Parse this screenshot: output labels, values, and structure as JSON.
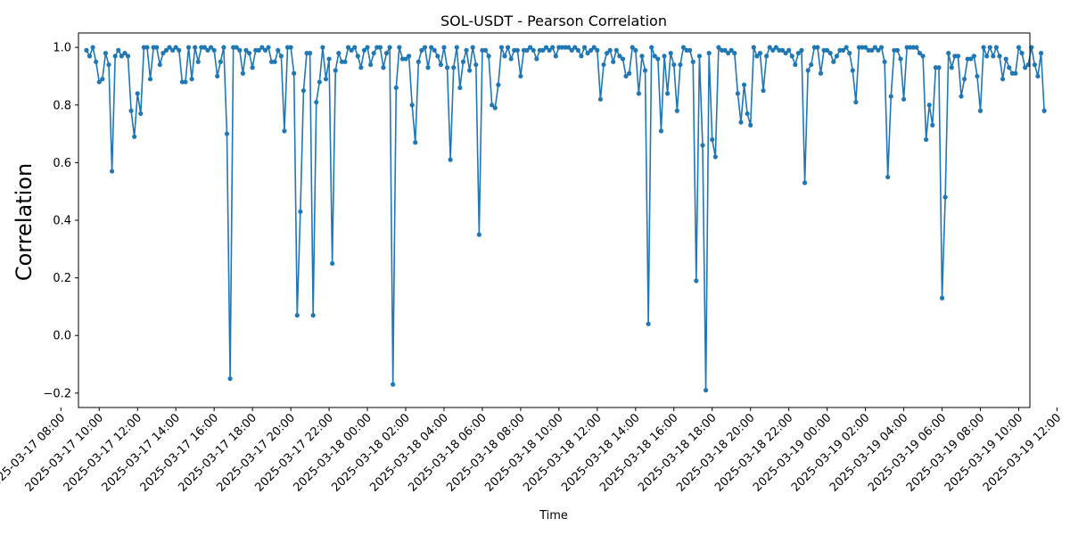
{
  "chart_data": {
    "type": "line",
    "title": "SOL-USDT - Pearson Correlation",
    "xlabel": "Time",
    "ylabel": "Correlation",
    "ylim": [
      -0.25,
      1.05
    ],
    "xlim": [
      "2025-03-17 08:55",
      "2025-03-19 10:35"
    ],
    "yticks": [
      -0.2,
      0.0,
      0.2,
      0.4,
      0.6,
      0.8,
      1.0
    ],
    "ytick_labels": [
      "−0.2",
      "0.0",
      "0.2",
      "0.4",
      "0.6",
      "0.8",
      "1.0"
    ],
    "xticks": [
      "2025-03-17 08:00",
      "2025-03-17 10:00",
      "2025-03-17 12:00",
      "2025-03-17 14:00",
      "2025-03-17 16:00",
      "2025-03-17 18:00",
      "2025-03-17 20:00",
      "2025-03-17 22:00",
      "2025-03-18 00:00",
      "2025-03-18 02:00",
      "2025-03-18 04:00",
      "2025-03-18 06:00",
      "2025-03-18 08:00",
      "2025-03-18 10:00",
      "2025-03-18 12:00",
      "2025-03-18 14:00",
      "2025-03-18 16:00",
      "2025-03-18 18:00",
      "2025-03-18 20:00",
      "2025-03-18 22:00",
      "2025-03-19 00:00",
      "2025-03-19 02:00",
      "2025-03-19 04:00",
      "2025-03-19 06:00",
      "2025-03-19 08:00",
      "2025-03-19 10:00",
      "2025-03-19 12:00"
    ],
    "grid": false,
    "marker": "circle",
    "color": "#1f77b4",
    "series": [
      {
        "start": "2025-03-17 09:20",
        "interval_minutes": 10,
        "values": [
          0.99,
          0.97,
          1.0,
          0.95,
          0.88,
          0.89,
          0.98,
          0.94,
          0.57,
          0.97,
          0.99,
          0.97,
          0.98,
          0.97,
          0.78,
          0.69,
          0.84,
          0.77,
          1.0,
          1.0,
          0.89,
          1.0,
          1.0,
          0.94,
          0.98,
          0.99,
          1.0,
          0.99,
          1.0,
          0.99,
          0.88,
          0.88,
          1.0,
          0.89,
          1.0,
          0.95,
          1.0,
          1.0,
          0.99,
          1.0,
          0.99,
          0.9,
          0.95,
          1.0,
          0.7,
          -0.15,
          1.0,
          1.0,
          0.99,
          0.91,
          0.99,
          0.98,
          0.93,
          0.99,
          0.99,
          1.0,
          0.99,
          1.0,
          0.95,
          0.95,
          0.99,
          0.97,
          0.71,
          1.0,
          1.0,
          0.91,
          0.07,
          0.43,
          0.85,
          0.98,
          0.98,
          0.07,
          0.81,
          0.88,
          1.0,
          0.89,
          0.96,
          0.25,
          0.92,
          0.98,
          0.95,
          0.95,
          1.0,
          0.99,
          1.0,
          0.97,
          0.93,
          0.99,
          1.0,
          0.94,
          0.98,
          1.0,
          1.0,
          0.93,
          0.98,
          1.0,
          -0.17,
          0.86,
          1.0,
          0.96,
          0.96,
          0.97,
          0.8,
          0.67,
          0.95,
          0.99,
          1.0,
          0.93,
          1.0,
          0.99,
          0.97,
          0.94,
          1.0,
          0.93,
          0.61,
          0.93,
          1.0,
          0.86,
          0.95,
          0.99,
          0.92,
          1.0,
          0.94,
          0.35,
          0.99,
          0.99,
          0.97,
          0.8,
          0.79,
          0.87,
          1.0,
          0.97,
          1.0,
          0.96,
          0.99,
          0.99,
          0.9,
          0.99,
          0.99,
          1.0,
          0.99,
          0.96,
          0.99,
          0.99,
          1.0,
          0.99,
          1.0,
          0.97,
          1.0,
          1.0,
          1.0,
          1.0,
          0.99,
          1.0,
          0.99,
          0.97,
          1.0,
          0.98,
          0.99,
          1.0,
          0.99,
          0.82,
          0.94,
          0.98,
          0.99,
          0.95,
          0.99,
          0.97,
          0.96,
          0.9,
          0.91,
          1.0,
          0.99,
          0.84,
          0.97,
          0.92,
          0.04,
          1.0,
          0.97,
          0.96,
          0.71,
          0.97,
          0.84,
          0.98,
          0.94,
          0.78,
          0.94,
          1.0,
          0.99,
          0.99,
          0.95,
          0.19,
          0.97,
          0.66,
          -0.19,
          0.98,
          0.68,
          0.62,
          1.0,
          0.99,
          0.99,
          0.98,
          0.99,
          0.98,
          0.84,
          0.74,
          0.87,
          0.77,
          0.73,
          1.0,
          0.97,
          0.98,
          0.85,
          0.97,
          1.0,
          0.99,
          1.0,
          0.99,
          0.99,
          0.98,
          0.99,
          0.97,
          0.94,
          0.98,
          0.99,
          0.53,
          0.92,
          0.94,
          1.0,
          1.0,
          0.91,
          0.99,
          0.99,
          0.98,
          0.95,
          0.97,
          0.99,
          0.99,
          1.0,
          0.98,
          0.92,
          0.81,
          1.0,
          1.0,
          1.0,
          0.99,
          0.99,
          1.0,
          0.99,
          1.0,
          0.95,
          0.55,
          0.83,
          0.99,
          0.99,
          0.96,
          0.82,
          1.0,
          1.0,
          1.0,
          1.0,
          0.98,
          0.97,
          0.68,
          0.8,
          0.73,
          0.93,
          0.93,
          0.13,
          0.48,
          0.98,
          0.93,
          0.97,
          0.97,
          0.83,
          0.89,
          0.96,
          0.96,
          0.97,
          0.9,
          0.78,
          1.0,
          0.97,
          1.0,
          0.97,
          1.0,
          0.97,
          0.89,
          0.96,
          0.93,
          0.91,
          0.91,
          1.0,
          0.98,
          0.93,
          0.94,
          1.0,
          0.94,
          0.9,
          0.98,
          0.78
        ]
      }
    ]
  }
}
